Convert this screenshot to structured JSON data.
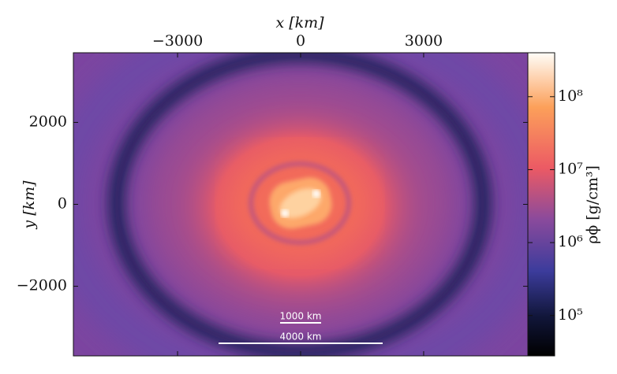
{
  "chart_data": {
    "type": "heatmap",
    "xlabel": "x [km]",
    "ylabel": "y [km]",
    "xlim": [
      -5540,
      5540
    ],
    "ylim": [
      -3700,
      3700
    ],
    "xticks": [
      {
        "value": -3000,
        "label": "−3000"
      },
      0,
      3000
    ],
    "yticks": [
      {
        "value": -2000,
        "label": "−2000"
      },
      0,
      2000
    ],
    "colorbar": {
      "label": "ρϕ [g/cm³]",
      "scale": "log",
      "lim": [
        28000,
        400000000
      ],
      "ticks": [
        {
          "value": 100000,
          "label": "10⁵"
        },
        {
          "value": 1000000,
          "label": "10⁶"
        },
        {
          "value": 10000000,
          "label": "10⁷"
        },
        {
          "value": 100000000,
          "label": "10⁸"
        }
      ]
    },
    "scale_bars": [
      {
        "label": "1000 km",
        "length": 1000
      },
      {
        "label": "4000 km",
        "length": 4000
      }
    ]
  }
}
